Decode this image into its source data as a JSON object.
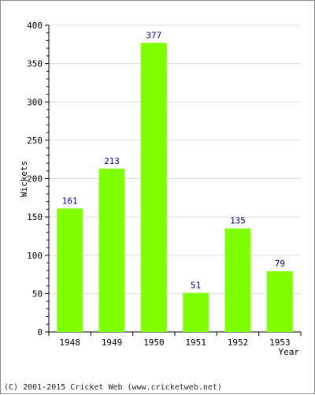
{
  "chart_data": {
    "type": "bar",
    "categories": [
      "1948",
      "1949",
      "1950",
      "1951",
      "1952",
      "1953"
    ],
    "values": [
      161,
      213,
      377,
      51,
      135,
      79
    ],
    "xlabel": "Year",
    "ylabel": "Wickets",
    "ylim": [
      0,
      400
    ],
    "yticks": [
      0,
      50,
      100,
      150,
      200,
      250,
      300,
      350,
      400
    ],
    "grid": true,
    "bar_color": "#80ff00",
    "label_color": "#000080"
  },
  "footer": {
    "copyright": "(C) 2001-2015 Cricket Web (www.cricketweb.net)"
  }
}
